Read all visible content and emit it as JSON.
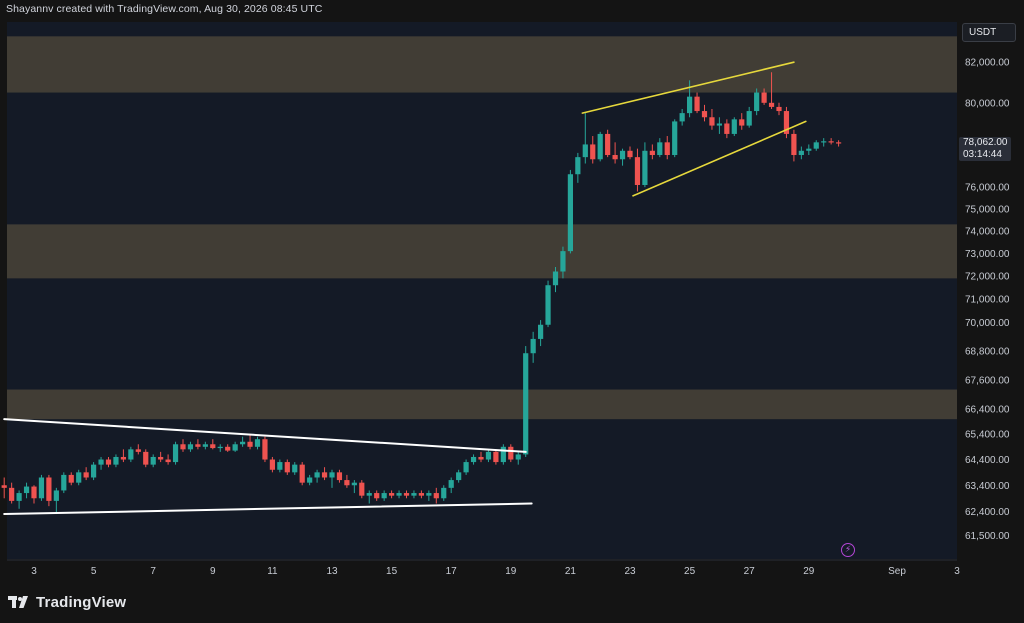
{
  "header": {
    "text": "Shayannv created with TradingView.com, Aug 30, 2026 08:45 UTC"
  },
  "currency": "USDT",
  "current_price": {
    "price": "78,062.00",
    "countdown": "03:14:44"
  },
  "logo": {
    "text": "TradingView",
    "icon": "tradingview-logo-icon"
  },
  "indicator_icon": "flash-icon",
  "colors": {
    "background": "#141414",
    "plot": "#141a26",
    "zone": "#4c4539",
    "up": "#26a69a",
    "down": "#ef5350",
    "wedge": "#e6d83c",
    "triangle": "#ffffff"
  },
  "chart_data": {
    "type": "candlestick",
    "x_tick_labels": [
      "3",
      "5",
      "7",
      "9",
      "11",
      "13",
      "15",
      "17",
      "19",
      "21",
      "23",
      "25",
      "27",
      "29",
      "Sep",
      "3"
    ],
    "y_tick_labels": [
      "82,000.00",
      "80,000.00",
      "78,000.00",
      "76,000.00",
      "75,000.00",
      "74,000.00",
      "73,000.00",
      "72,000.00",
      "71,000.00",
      "70,000.00",
      "68,800.00",
      "67,600.00",
      "66,400.00",
      "65,400.00",
      "64,400.00",
      "63,400.00",
      "62,400.00",
      "61,500.00"
    ],
    "scale": "log",
    "y_range": [
      60800,
      83700
    ],
    "zones": [
      {
        "low": 80500,
        "high": 83300
      },
      {
        "low": 71900,
        "high": 74300
      },
      {
        "low": 66000,
        "high": 67200
      }
    ],
    "trendlines": [
      {
        "name": "triangle-upper",
        "color": "white",
        "from": {
          "day": 2.0,
          "price": 66000
        },
        "to": {
          "day": 19.5,
          "price": 64700
        }
      },
      {
        "name": "triangle-lower",
        "color": "white",
        "from": {
          "day": 2.0,
          "price": 62300
        },
        "to": {
          "day": 19.7,
          "price": 62700
        }
      },
      {
        "name": "wedge-upper",
        "color": "yellow",
        "from": {
          "day": 21.4,
          "price": 79500
        },
        "to": {
          "day": 28.5,
          "price": 82000
        }
      },
      {
        "name": "wedge-lower",
        "color": "yellow",
        "from": {
          "day": 23.1,
          "price": 75600
        },
        "to": {
          "day": 28.9,
          "price": 79100
        }
      }
    ],
    "candles": [
      [
        2.0,
        63400,
        63700,
        62900,
        63300
      ],
      [
        2.25,
        63300,
        63500,
        62700,
        62800
      ],
      [
        2.5,
        62800,
        63200,
        62500,
        63100
      ],
      [
        2.75,
        63100,
        63500,
        62900,
        63350
      ],
      [
        3.0,
        63350,
        63400,
        62700,
        62900
      ],
      [
        3.25,
        62900,
        63800,
        62800,
        63700
      ],
      [
        3.5,
        63700,
        63800,
        62600,
        62800
      ],
      [
        3.75,
        62800,
        63300,
        62300,
        63200
      ],
      [
        4.0,
        63200,
        63900,
        63100,
        63800
      ],
      [
        4.25,
        63800,
        63900,
        63400,
        63500
      ],
      [
        4.5,
        63500,
        64000,
        63400,
        63900
      ],
      [
        4.75,
        63900,
        64100,
        63600,
        63700
      ],
      [
        5.0,
        63700,
        64300,
        63600,
        64200
      ],
      [
        5.25,
        64200,
        64500,
        64000,
        64400
      ],
      [
        5.5,
        64400,
        64500,
        64100,
        64200
      ],
      [
        5.75,
        64200,
        64600,
        64100,
        64500
      ],
      [
        6.0,
        64500,
        64800,
        64300,
        64400
      ],
      [
        6.25,
        64400,
        64900,
        64300,
        64800
      ],
      [
        6.5,
        64800,
        65000,
        64600,
        64700
      ],
      [
        6.75,
        64700,
        64800,
        64100,
        64200
      ],
      [
        7.0,
        64200,
        64600,
        64100,
        64500
      ],
      [
        7.25,
        64500,
        64700,
        64300,
        64400
      ],
      [
        7.5,
        64400,
        64600,
        64200,
        64300
      ],
      [
        7.75,
        64300,
        65100,
        64200,
        65000
      ],
      [
        8.0,
        65000,
        65200,
        64700,
        64800
      ],
      [
        8.25,
        64800,
        65100,
        64700,
        65000
      ],
      [
        8.5,
        65000,
        65200,
        64800,
        64900
      ],
      [
        8.75,
        64900,
        65100,
        64800,
        65000
      ],
      [
        9.0,
        65000,
        65200,
        64800,
        64850
      ],
      [
        9.25,
        64850,
        65000,
        64700,
        64900
      ],
      [
        9.5,
        64900,
        65000,
        64700,
        64750
      ],
      [
        9.75,
        64750,
        65100,
        64700,
        65000
      ],
      [
        10.0,
        65000,
        65300,
        64900,
        65100
      ],
      [
        10.25,
        65100,
        65400,
        64800,
        64900
      ],
      [
        10.5,
        64900,
        65300,
        64800,
        65200
      ],
      [
        10.75,
        65200,
        65300,
        64300,
        64400
      ],
      [
        11.0,
        64400,
        64500,
        63900,
        64000
      ],
      [
        11.25,
        64000,
        64400,
        63900,
        64300
      ],
      [
        11.5,
        64300,
        64400,
        63800,
        63900
      ],
      [
        11.75,
        63900,
        64300,
        63800,
        64200
      ],
      [
        12.0,
        64200,
        64300,
        63400,
        63500
      ],
      [
        12.25,
        63500,
        63800,
        63400,
        63700
      ],
      [
        12.5,
        63700,
        64000,
        63500,
        63900
      ],
      [
        12.75,
        63900,
        64100,
        63600,
        63700
      ],
      [
        13.0,
        63700,
        64000,
        63300,
        63900
      ],
      [
        13.25,
        63900,
        64000,
        63500,
        63600
      ],
      [
        13.5,
        63600,
        63800,
        63300,
        63400
      ],
      [
        13.75,
        63400,
        63600,
        63100,
        63500
      ],
      [
        14.0,
        63500,
        63600,
        62900,
        63000
      ],
      [
        14.25,
        63000,
        63200,
        62700,
        63100
      ],
      [
        14.5,
        63100,
        63200,
        62800,
        62900
      ],
      [
        14.75,
        62900,
        63200,
        62800,
        63100
      ],
      [
        15.0,
        63100,
        63200,
        62900,
        63000
      ],
      [
        15.25,
        63000,
        63200,
        62900,
        63100
      ],
      [
        15.5,
        63100,
        63200,
        62900,
        63000
      ],
      [
        15.75,
        63000,
        63200,
        62900,
        63100
      ],
      [
        16.0,
        63100,
        63200,
        62900,
        63000
      ],
      [
        16.25,
        63000,
        63200,
        62800,
        63100
      ],
      [
        16.5,
        63100,
        63300,
        62700,
        62900
      ],
      [
        16.75,
        62900,
        63400,
        62800,
        63300
      ],
      [
        17.0,
        63300,
        63700,
        63100,
        63600
      ],
      [
        17.25,
        63600,
        64000,
        63500,
        63900
      ],
      [
        17.5,
        63900,
        64400,
        63800,
        64300
      ],
      [
        17.75,
        64300,
        64600,
        64200,
        64500
      ],
      [
        18.0,
        64500,
        64700,
        64300,
        64400
      ],
      [
        18.25,
        64400,
        64800,
        64300,
        64700
      ],
      [
        18.5,
        64700,
        64800,
        64200,
        64300
      ],
      [
        18.75,
        64300,
        65000,
        64200,
        64900
      ],
      [
        19.0,
        64900,
        65000,
        64300,
        64400
      ],
      [
        19.25,
        64400,
        64700,
        64200,
        64600
      ],
      [
        19.5,
        64600,
        69000,
        64500,
        68700
      ],
      [
        19.75,
        68700,
        69600,
        68300,
        69300
      ],
      [
        20.0,
        69300,
        70100,
        69000,
        69900
      ],
      [
        20.25,
        69900,
        71800,
        69800,
        71600
      ],
      [
        20.5,
        71600,
        72400,
        71300,
        72200
      ],
      [
        20.75,
        72200,
        73300,
        71900,
        73100
      ],
      [
        21.0,
        73100,
        76800,
        73000,
        76600
      ],
      [
        21.25,
        76600,
        77600,
        76200,
        77400
      ],
      [
        21.5,
        77400,
        79500,
        77100,
        78000
      ],
      [
        21.75,
        78000,
        78400,
        77100,
        77300
      ],
      [
        22.0,
        77300,
        78600,
        77200,
        78500
      ],
      [
        22.25,
        78500,
        78700,
        77400,
        77500
      ],
      [
        22.5,
        77500,
        78100,
        77100,
        77300
      ],
      [
        22.75,
        77300,
        77800,
        77000,
        77700
      ],
      [
        23.0,
        77700,
        77900,
        77300,
        77400
      ],
      [
        23.25,
        77400,
        77800,
        75800,
        76100
      ],
      [
        23.5,
        76100,
        78100,
        76000,
        77700
      ],
      [
        23.75,
        77700,
        78000,
        77300,
        77500
      ],
      [
        24.0,
        77500,
        78300,
        77400,
        78100
      ],
      [
        24.25,
        78100,
        78400,
        77300,
        77500
      ],
      [
        24.5,
        77500,
        79200,
        77400,
        79100
      ],
      [
        24.75,
        79100,
        79700,
        78900,
        79500
      ],
      [
        25.0,
        79500,
        81100,
        79300,
        80300
      ],
      [
        25.25,
        80300,
        80500,
        79500,
        79600
      ],
      [
        25.5,
        79600,
        79900,
        79100,
        79300
      ],
      [
        25.75,
        79300,
        79700,
        78700,
        78900
      ],
      [
        26.0,
        78900,
        79300,
        78500,
        79000
      ],
      [
        26.25,
        79000,
        79200,
        78300,
        78500
      ],
      [
        26.5,
        78500,
        79300,
        78400,
        79200
      ],
      [
        26.75,
        79200,
        79500,
        78700,
        78900
      ],
      [
        27.0,
        78900,
        79800,
        78800,
        79600
      ],
      [
        27.25,
        79600,
        80700,
        79400,
        80500
      ],
      [
        27.5,
        80500,
        80700,
        79900,
        80000
      ],
      [
        27.75,
        80000,
        81500,
        79700,
        79800
      ],
      [
        28.0,
        79800,
        80000,
        79400,
        79600
      ],
      [
        28.25,
        79600,
        79800,
        78300,
        78500
      ],
      [
        28.5,
        78500,
        78700,
        77200,
        77500
      ],
      [
        28.75,
        77500,
        77900,
        77300,
        77700
      ],
      [
        29.0,
        77700,
        78000,
        77500,
        77800
      ],
      [
        29.25,
        77800,
        78200,
        77700,
        78100
      ],
      [
        29.5,
        78100,
        78300,
        77900,
        78150
      ],
      [
        29.75,
        78150,
        78300,
        78000,
        78100
      ],
      [
        30.0,
        78100,
        78200,
        77900,
        78062
      ]
    ]
  }
}
